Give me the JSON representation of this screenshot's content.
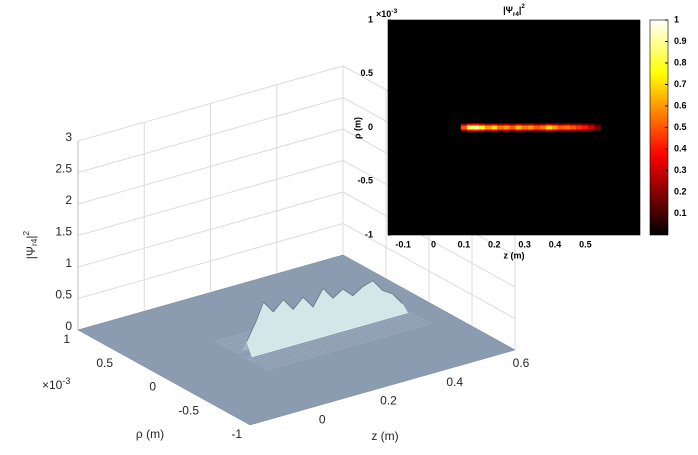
{
  "chart_data": [
    {
      "type": "surface",
      "zlabel": {
        "base": "|Ψ",
        "sub": "r4",
        "close": "|",
        "sup": "2"
      },
      "xlabel": "z (m)",
      "ylabel": "ρ (m)",
      "xlim": [
        -0.2,
        0.6
      ],
      "xticks": [
        0,
        0.2,
        0.4,
        0.6
      ],
      "ylim": [
        -1,
        1
      ],
      "yticks": [
        -1,
        -0.5,
        0,
        0.5,
        1
      ],
      "y_exponent": {
        "base": "×10",
        "sup": "-3"
      },
      "zlim": [
        0,
        3
      ],
      "zticks": [
        0,
        0.5,
        1,
        1.5,
        2,
        2.5,
        3
      ],
      "grid": true,
      "color": "#8c9cb0",
      "ridge_color": "#d2e8e8",
      "ridge": {
        "x": [
          0.05,
          0.08,
          0.1,
          0.13,
          0.16,
          0.19,
          0.22,
          0.25,
          0.28,
          0.31,
          0.34,
          0.37,
          0.4,
          0.43,
          0.46,
          0.49,
          0.52
        ],
        "values": [
          0.2,
          0.5,
          0.75,
          0.55,
          0.7,
          0.5,
          0.65,
          0.45,
          0.7,
          0.5,
          0.6,
          0.45,
          0.55,
          0.6,
          0.4,
          0.3,
          0.1
        ]
      }
    },
    {
      "type": "heatmap",
      "title": {
        "base": "|Ψ",
        "sub": "r4",
        "close": "|",
        "sup": "2"
      },
      "xlabel": "z (m)",
      "ylabel": "ρ (m)",
      "xlim": [
        -0.15,
        0.68
      ],
      "xticks": [
        -0.1,
        0,
        0.1,
        0.2,
        0.3,
        0.4,
        0.5
      ],
      "ylim": [
        -1,
        1
      ],
      "yticks": [
        -1,
        -0.5,
        0,
        0.5,
        1
      ],
      "y_exponent": {
        "base": "×10",
        "sup": "-3"
      },
      "colorbar": {
        "lim": [
          0,
          1
        ],
        "ticks": [
          0.1,
          0.2,
          0.3,
          0.4,
          0.5,
          0.6,
          0.7,
          0.8,
          0.9,
          1
        ]
      },
      "x": [
        0.1,
        0.12,
        0.14,
        0.16,
        0.18,
        0.2,
        0.22,
        0.24,
        0.26,
        0.28,
        0.3,
        0.32,
        0.34,
        0.36,
        0.38,
        0.4,
        0.42,
        0.44,
        0.46,
        0.48,
        0.5,
        0.52,
        0.54
      ],
      "values": [
        0.5,
        0.85,
        0.9,
        0.75,
        0.6,
        0.7,
        0.55,
        0.6,
        0.5,
        0.65,
        0.55,
        0.6,
        0.5,
        0.55,
        0.7,
        0.6,
        0.5,
        0.55,
        0.5,
        0.45,
        0.4,
        0.3,
        0.15
      ]
    }
  ]
}
